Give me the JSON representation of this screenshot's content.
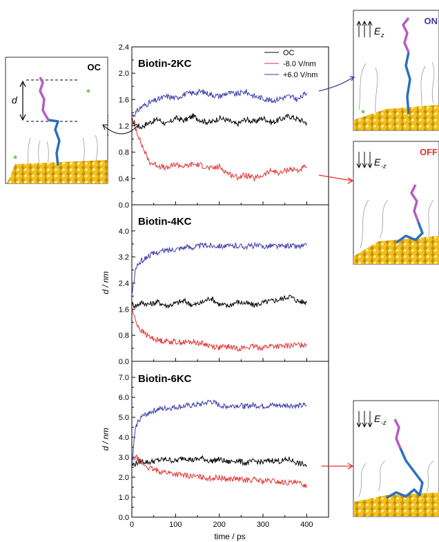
{
  "chart_data": [
    {
      "type": "line",
      "title": "Biotin-2KC",
      "xlabel": "time / ps",
      "ylabel": "d / nm",
      "xlim": [
        0,
        450
      ],
      "ylim": [
        0,
        2.4
      ],
      "xticks": [
        0,
        100,
        200,
        300,
        400
      ],
      "yticks": [
        "0.0",
        "0.4",
        "0.8",
        "1.2",
        "1.6",
        "2.0",
        "2.4"
      ],
      "legend_position": "top-right",
      "series": [
        {
          "name": "OC",
          "color": "#000000",
          "x": [
            0,
            10,
            20,
            40,
            60,
            80,
            100,
            120,
            140,
            160,
            180,
            200,
            220,
            240,
            260,
            280,
            300,
            320,
            340,
            360,
            380,
            400
          ],
          "y": [
            1.28,
            1.22,
            1.18,
            1.25,
            1.3,
            1.22,
            1.32,
            1.28,
            1.35,
            1.28,
            1.25,
            1.32,
            1.28,
            1.22,
            1.3,
            1.26,
            1.32,
            1.25,
            1.3,
            1.35,
            1.3,
            1.25
          ]
        },
        {
          "name": "-8.0 V/nm",
          "color": "#e0302e",
          "x": [
            0,
            10,
            20,
            30,
            40,
            60,
            80,
            100,
            120,
            140,
            160,
            180,
            200,
            220,
            240,
            260,
            280,
            300,
            320,
            340,
            360,
            380,
            400
          ],
          "y": [
            1.28,
            1.15,
            0.95,
            0.8,
            0.65,
            0.6,
            0.55,
            0.62,
            0.58,
            0.62,
            0.6,
            0.55,
            0.58,
            0.48,
            0.42,
            0.45,
            0.4,
            0.45,
            0.52,
            0.48,
            0.55,
            0.52,
            0.58
          ]
        },
        {
          "name": "+6.0 V/nm",
          "color": "#3a3aaa",
          "x": [
            0,
            10,
            20,
            40,
            60,
            80,
            100,
            120,
            140,
            160,
            180,
            200,
            220,
            240,
            260,
            280,
            300,
            320,
            340,
            360,
            380,
            400
          ],
          "y": [
            1.35,
            1.4,
            1.48,
            1.55,
            1.6,
            1.65,
            1.62,
            1.68,
            1.7,
            1.72,
            1.68,
            1.65,
            1.7,
            1.68,
            1.72,
            1.65,
            1.62,
            1.58,
            1.62,
            1.65,
            1.6,
            1.7
          ]
        }
      ]
    },
    {
      "type": "line",
      "title": "Biotin-4KC",
      "xlabel": "time / ps",
      "ylabel": "d / nm",
      "xlim": [
        0,
        450
      ],
      "ylim": [
        0,
        4.8
      ],
      "xticks": [
        0,
        100,
        200,
        300,
        400
      ],
      "yticks": [
        "0.0",
        "0.8",
        "1.6",
        "2.4",
        "3.2",
        "4.0"
      ],
      "series": [
        {
          "name": "OC",
          "color": "#000000",
          "x": [
            0,
            10,
            20,
            40,
            60,
            80,
            100,
            120,
            140,
            160,
            180,
            200,
            220,
            240,
            260,
            280,
            300,
            320,
            340,
            360,
            380,
            400
          ],
          "y": [
            1.75,
            1.7,
            1.8,
            1.75,
            1.82,
            1.7,
            1.78,
            1.85,
            1.72,
            1.8,
            1.95,
            1.75,
            1.7,
            1.82,
            1.78,
            1.72,
            1.8,
            1.85,
            1.9,
            2.0,
            1.85,
            1.8
          ]
        },
        {
          "name": "-8.0 V/nm",
          "color": "#e0302e",
          "x": [
            0,
            5,
            10,
            20,
            30,
            40,
            60,
            80,
            100,
            120,
            140,
            160,
            180,
            200,
            220,
            240,
            260,
            280,
            300,
            320,
            340,
            360,
            380,
            400
          ],
          "y": [
            1.65,
            1.4,
            1.2,
            0.95,
            0.85,
            0.75,
            0.65,
            0.62,
            0.6,
            0.58,
            0.6,
            0.55,
            0.48,
            0.42,
            0.45,
            0.4,
            0.42,
            0.45,
            0.42,
            0.48,
            0.45,
            0.48,
            0.5,
            0.52
          ]
        },
        {
          "name": "+6.0 V/nm",
          "color": "#3a3aaa",
          "x": [
            0,
            5,
            10,
            20,
            30,
            40,
            60,
            80,
            100,
            120,
            140,
            160,
            180,
            200,
            220,
            240,
            260,
            280,
            300,
            320,
            340,
            360,
            380,
            400
          ],
          "y": [
            2.0,
            2.5,
            2.9,
            3.05,
            3.15,
            3.25,
            3.35,
            3.4,
            3.45,
            3.5,
            3.5,
            3.55,
            3.55,
            3.55,
            3.52,
            3.55,
            3.52,
            3.55,
            3.52,
            3.55,
            3.52,
            3.55,
            3.52,
            3.55
          ]
        }
      ]
    },
    {
      "type": "line",
      "title": "Biotin-6KC",
      "xlabel": "time / ps",
      "ylabel": "d / nm",
      "xlim": [
        0,
        450
      ],
      "ylim": [
        0,
        7.8
      ],
      "xticks": [
        0,
        100,
        200,
        300,
        400
      ],
      "yticks": [
        "0.0",
        "1.0",
        "2.0",
        "3.0",
        "4.0",
        "5.0",
        "6.0",
        "7.0"
      ],
      "series": [
        {
          "name": "OC",
          "color": "#000000",
          "x": [
            0,
            10,
            20,
            40,
            60,
            80,
            100,
            120,
            140,
            160,
            180,
            200,
            220,
            240,
            260,
            280,
            300,
            320,
            340,
            360,
            380,
            400
          ],
          "y": [
            2.6,
            2.7,
            2.8,
            2.75,
            2.85,
            2.9,
            2.8,
            3.0,
            2.85,
            2.95,
            2.8,
            2.9,
            2.75,
            2.85,
            2.7,
            2.8,
            2.75,
            2.85,
            2.8,
            2.9,
            2.7,
            2.6
          ]
        },
        {
          "name": "-8.0 V/nm",
          "color": "#e0302e",
          "x": [
            0,
            5,
            10,
            20,
            40,
            60,
            80,
            100,
            120,
            140,
            160,
            180,
            200,
            220,
            240,
            260,
            280,
            300,
            320,
            340,
            360,
            380,
            400
          ],
          "y": [
            2.8,
            2.95,
            3.0,
            2.75,
            2.45,
            2.3,
            2.25,
            2.15,
            2.1,
            2.05,
            2.0,
            1.95,
            1.98,
            1.9,
            1.92,
            1.85,
            1.88,
            1.8,
            1.82,
            1.75,
            1.72,
            1.7,
            1.6
          ]
        },
        {
          "name": "+6.0 V/nm",
          "color": "#3a3aaa",
          "x": [
            0,
            5,
            10,
            20,
            30,
            40,
            60,
            80,
            100,
            120,
            140,
            160,
            180,
            200,
            220,
            240,
            260,
            280,
            300,
            320,
            340,
            360,
            380,
            400
          ],
          "y": [
            2.5,
            3.8,
            4.6,
            5.0,
            5.1,
            5.25,
            5.4,
            5.45,
            5.5,
            5.55,
            5.6,
            5.65,
            5.8,
            5.6,
            5.55,
            5.6,
            5.55,
            5.6,
            5.55,
            5.6,
            5.58,
            5.6,
            5.55,
            5.6
          ]
        }
      ]
    }
  ],
  "insets": {
    "oc_label": "OC",
    "oc_distance_label": "d",
    "on_label": "ON",
    "off_label": "OFF",
    "field_symbol": "E",
    "field_up_sub": "z",
    "field_down_sub": "-z",
    "colors": {
      "on": "#3a3aaa",
      "off": "#e0302e",
      "gold": "#d4a10e",
      "biotin": "#b65bc4",
      "chain": "#2b6fbf"
    }
  }
}
